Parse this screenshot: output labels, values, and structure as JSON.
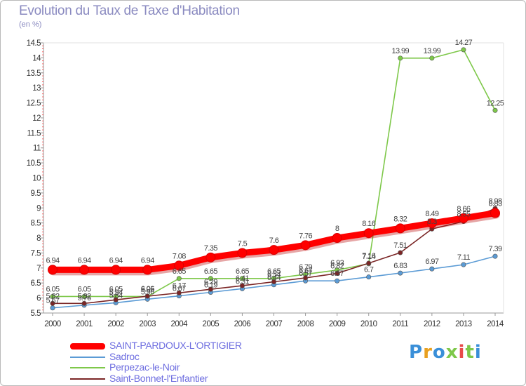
{
  "title": "Evolution du Taux de Taxe d'Habitation",
  "unit": "(en %)",
  "brand": {
    "letters": [
      "P",
      "r",
      "o",
      "x",
      "i",
      "t",
      "i"
    ],
    "colors": [
      "#3a8fd8",
      "#e8a020",
      "#3a8fd8",
      "#7ec84a",
      "#e84a4a",
      "#7ec84a",
      "#3a8fd8"
    ]
  },
  "chart_data": {
    "type": "line",
    "title": "Evolution du Taux de Taxe d'Habitation",
    "ylabel": "(en %)",
    "xlabel": "",
    "ylim": [
      5.5,
      14.5
    ],
    "grid": false,
    "legend_position": "bottom-left",
    "x": [
      "2000",
      "2001",
      "2002",
      "2003",
      "2004",
      "2005",
      "2006",
      "2007",
      "2008",
      "2009",
      "2010",
      "2011",
      "2012",
      "2013",
      "2014"
    ],
    "y_ticks": [
      "5.5",
      "6",
      "6.5",
      "7",
      "7.5",
      "8",
      "8.5",
      "9",
      "9.5",
      "10",
      "10.5",
      "11",
      "11.5",
      "12",
      "12.5",
      "13",
      "13.5",
      "14",
      "14.5"
    ],
    "series": [
      {
        "name": "SAINT-PARDOUX-L'ORTIGIER",
        "color": "#ff0000",
        "values": [
          6.94,
          6.94,
          6.94,
          6.94,
          7.08,
          7.35,
          7.5,
          7.6,
          7.76,
          8,
          8.16,
          8.32,
          8.49,
          8.66,
          8.83
        ],
        "labels": [
          "6.94",
          "6.94",
          "6.94",
          "6.94",
          "7.08",
          "7.35",
          "7.5",
          "7.6",
          "7.76",
          "8",
          "8.16",
          "8.32",
          "8.49",
          "8.66",
          "8.83"
        ]
      },
      {
        "name": "Sadroc",
        "color": "#5b9bd5",
        "values": [
          5.67,
          5.76,
          5.84,
          5.96,
          6.07,
          6.19,
          6.31,
          6.44,
          6.57,
          6.57,
          6.7,
          6.83,
          6.97,
          7.11,
          7.39
        ],
        "labels": [
          "5.67",
          "5.76",
          "5.84",
          "5.96",
          "6.07",
          "6.19",
          "6.31",
          "6.44",
          "6.57",
          "6.57",
          "6.7",
          "6.83",
          "6.97",
          "7.11",
          "7.39"
        ]
      },
      {
        "name": "Perpezac-le-Noir",
        "color": "#7ec84a",
        "values": [
          6.05,
          6.05,
          6.05,
          6.05,
          6.65,
          6.65,
          6.65,
          6.65,
          6.79,
          6.93,
          7.14,
          13.99,
          13.99,
          14.27,
          12.25
        ],
        "labels": [
          "6.05",
          "6.05",
          "6.05",
          "6.05",
          "6.65",
          "6.65",
          "6.65",
          "6.65",
          "6.79",
          "6.93",
          "7.14",
          "13.99",
          "13.99",
          "14.27",
          "12.25"
        ]
      },
      {
        "name": "Saint-Bonnet-l'Enfantier",
        "color": "#7b2626",
        "values": [
          5.82,
          5.82,
          5.94,
          6.06,
          6.17,
          6.29,
          6.41,
          6.54,
          6.67,
          6.82,
          7.16,
          7.51,
          8.3,
          8.55,
          8.98
        ],
        "labels": [
          "5.82",
          "5.82",
          "5.94",
          "6.06",
          "6.17",
          "6.29",
          "6.41",
          "6.54",
          "6.67",
          "6.82",
          "7.16",
          "7.51",
          "8.3",
          "8.55",
          "8.98"
        ]
      }
    ]
  }
}
